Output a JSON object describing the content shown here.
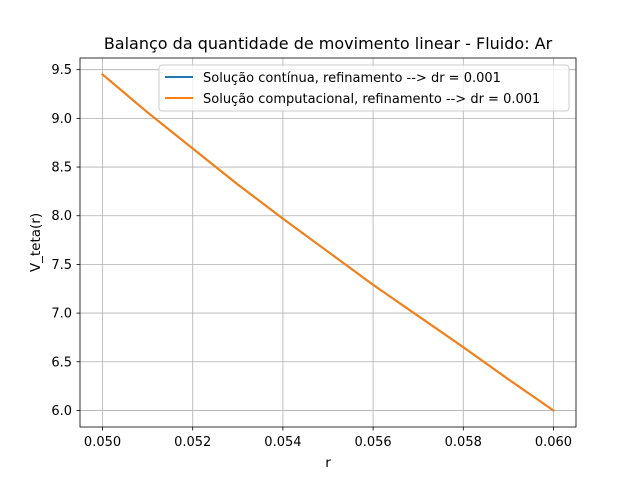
{
  "chart_data": {
    "type": "line",
    "title": "Balanço da quantidade de movimento linear - Fluido: Ar",
    "xlabel": "r",
    "ylabel": "V_teta(r)",
    "xlim": [
      0.0495,
      0.0605
    ],
    "ylim": [
      5.83,
      9.62
    ],
    "x_ticks": [
      0.05,
      0.052,
      0.054,
      0.056,
      0.058,
      0.06
    ],
    "x_tick_labels": [
      "0.050",
      "0.052",
      "0.054",
      "0.056",
      "0.058",
      "0.060"
    ],
    "y_ticks": [
      6.0,
      6.5,
      7.0,
      7.5,
      8.0,
      8.5,
      9.0,
      9.5
    ],
    "y_tick_labels": [
      "6.0",
      "6.5",
      "7.0",
      "7.5",
      "8.0",
      "8.5",
      "9.0",
      "9.5"
    ],
    "grid": true,
    "legend_position": "top-right",
    "x": [
      0.05,
      0.051,
      0.052,
      0.053,
      0.054,
      0.055,
      0.056,
      0.057,
      0.058,
      0.059,
      0.06
    ],
    "series": [
      {
        "name": "Solução contínua, refinamento --> dr = 0.001",
        "color": "#1f77b4",
        "values": [
          9.45,
          9.06,
          8.69,
          8.32,
          7.97,
          7.63,
          7.29,
          6.97,
          6.65,
          6.32,
          6.0
        ]
      },
      {
        "name": "Solução computacional, refinamento --> dr = 0.001",
        "color": "#ff7f0e",
        "values": [
          9.45,
          9.06,
          8.69,
          8.32,
          7.97,
          7.63,
          7.29,
          6.97,
          6.65,
          6.32,
          6.0
        ]
      }
    ]
  }
}
